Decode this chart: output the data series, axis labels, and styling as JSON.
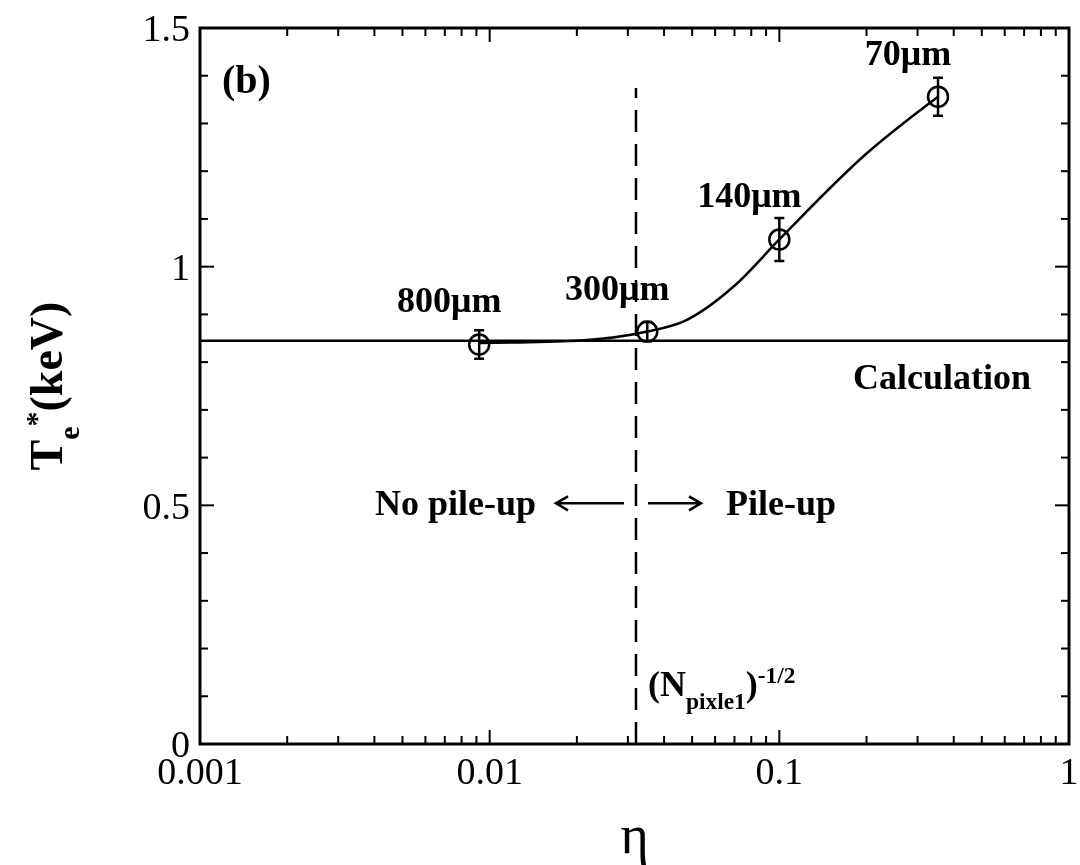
{
  "chart_data": {
    "type": "scatter",
    "xlabel": "η",
    "ylabel": "T$_{e}$$^{*}$(keV)",
    "log": "x",
    "xlim": [
      0.001,
      1
    ],
    "ylim": [
      0,
      1.5
    ],
    "xticks": [
      0.001,
      {
        "value": 0.002,
        "label": null
      },
      {
        "value": 0.003,
        "label": null
      },
      {
        "value": 0.004,
        "label": null
      },
      {
        "value": 0.005,
        "label": null
      },
      {
        "value": 0.006,
        "label": null
      },
      {
        "value": 0.007,
        "label": null
      },
      {
        "value": 0.008,
        "label": null
      },
      {
        "value": 0.009,
        "label": null
      },
      0.01,
      {
        "value": 0.02,
        "label": null
      },
      {
        "value": 0.03,
        "label": null
      },
      {
        "value": 0.04,
        "label": null
      },
      {
        "value": 0.05,
        "label": null
      },
      {
        "value": 0.06,
        "label": null
      },
      {
        "value": 0.07,
        "label": null
      },
      {
        "value": 0.08,
        "label": null
      },
      {
        "value": 0.09,
        "label": null
      },
      0.1,
      {
        "value": 0.2,
        "label": null
      },
      {
        "value": 0.3,
        "label": null
      },
      {
        "value": 0.4,
        "label": null
      },
      {
        "value": 0.5,
        "label": null
      },
      {
        "value": 0.6,
        "label": null
      },
      {
        "value": 0.7,
        "label": null
      },
      {
        "value": 0.8,
        "label": null
      },
      {
        "value": 0.9,
        "label": null
      },
      1
    ],
    "yticks": [
      0,
      {
        "value": 0.1,
        "label": null
      },
      {
        "value": 0.2,
        "label": null
      },
      {
        "value": 0.3,
        "label": null
      },
      {
        "value": 0.4,
        "label": null
      },
      0.5,
      {
        "value": 0.6,
        "label": null
      },
      {
        "value": 0.7,
        "label": null
      },
      {
        "value": 0.8,
        "label": null
      },
      {
        "value": 0.9,
        "label": null
      },
      1,
      {
        "value": 1.1,
        "label": null
      },
      {
        "value": 1.2,
        "label": null
      },
      {
        "value": 1.3,
        "label": null
      },
      {
        "value": 1.4,
        "label": null
      },
      1.5
    ],
    "grid": false,
    "series": [
      {
        "type": "line",
        "marker": "none",
        "color": "#000000",
        "x": [
          0.0092,
          0.02,
          0.035,
          0.047,
          0.07,
          0.1,
          0.2,
          0.353
        ],
        "values": [
          0.84,
          0.845,
          0.864,
          0.886,
          0.96,
          1.057,
          1.237,
          1.356
        ]
      },
      {
        "marker": "circle",
        "color": "#000000",
        "x": [
          0.0092,
          0.035,
          0.1,
          0.353
        ],
        "values": [
          0.837,
          0.864,
          1.057,
          1.356
        ],
        "errors": [
          0.03,
          0.02,
          0.045,
          0.04
        ]
      }
    ],
    "ref_lines": [
      {
        "axis": "y",
        "value": 0.845,
        "label": "Calculation",
        "line_style": "solid",
        "color": "#000000"
      },
      {
        "axis": "x",
        "value": 0.032,
        "label": "(N$_{pixle1}$)$^{-1/2}$",
        "line_style": "dashed",
        "color": "#000000"
      }
    ],
    "annotations": [
      "(b)",
      {
        "text": "800μm",
        "x": 0.0092,
        "y": 0.837
      },
      {
        "text": "300μm",
        "x": 0.035,
        "y": 0.864
      },
      {
        "text": "140μm",
        "x": 0.1,
        "y": 1.057
      },
      {
        "text": "70μm",
        "x": 0.353,
        "y": 1.356
      },
      "No pile-up",
      "Pile-up"
    ]
  }
}
